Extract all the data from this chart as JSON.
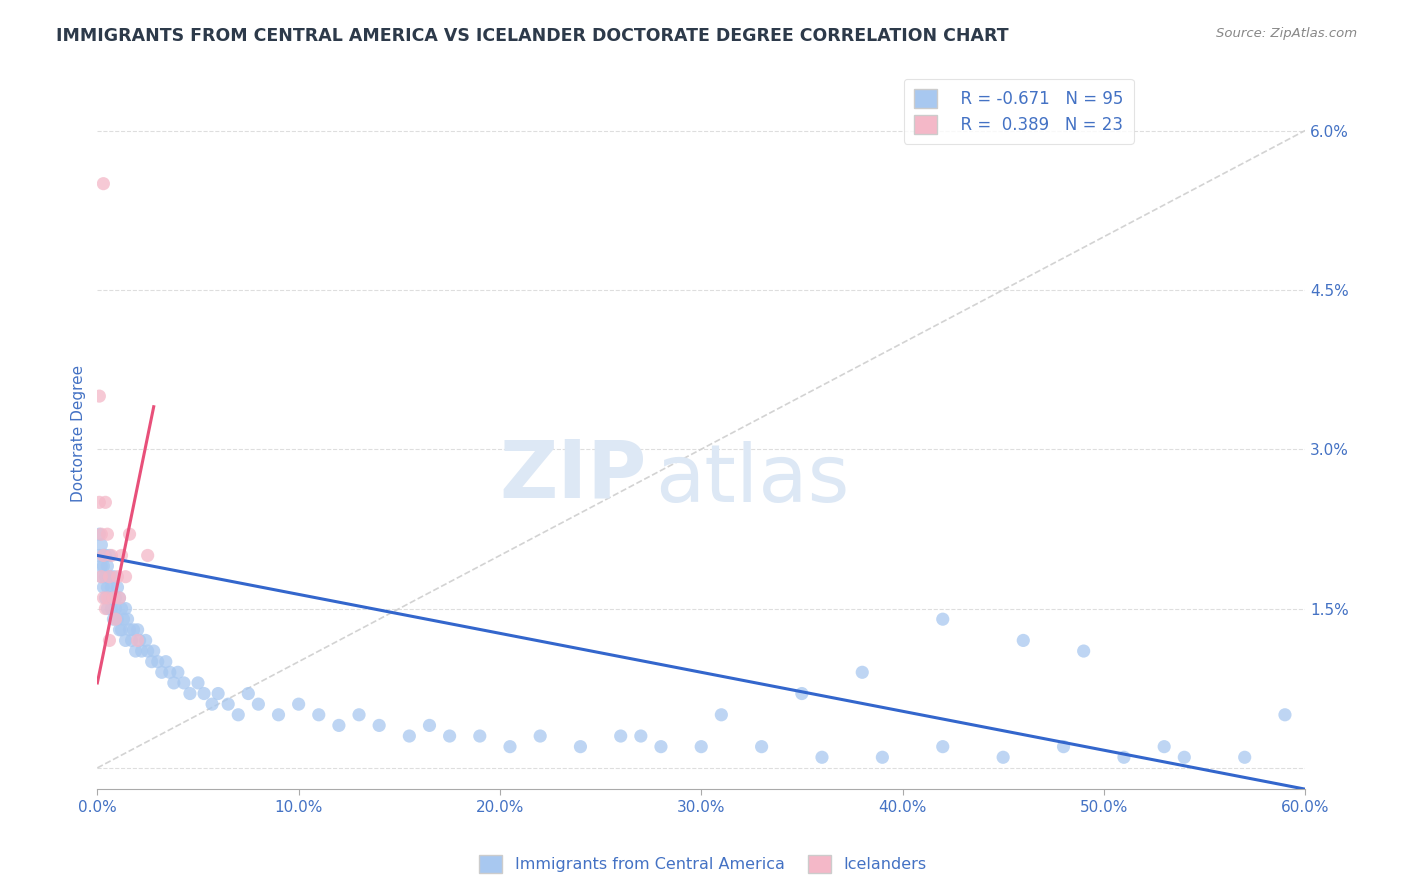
{
  "title": "IMMIGRANTS FROM CENTRAL AMERICA VS ICELANDER DOCTORATE DEGREE CORRELATION CHART",
  "source_text": "Source: ZipAtlas.com",
  "ylabel": "Doctorate Degree",
  "xlim": [
    0.0,
    0.6
  ],
  "ylim": [
    -0.002,
    0.065
  ],
  "xticks": [
    0.0,
    0.1,
    0.2,
    0.3,
    0.4,
    0.5,
    0.6
  ],
  "xticklabels": [
    "0.0%",
    "10.0%",
    "20.0%",
    "30.0%",
    "40.0%",
    "50.0%",
    "60.0%"
  ],
  "yticks_right": [
    0.0,
    0.015,
    0.03,
    0.045,
    0.06
  ],
  "yticklabels_right": [
    "",
    "1.5%",
    "3.0%",
    "4.5%",
    "6.0%"
  ],
  "grid_color": "#d0d0d0",
  "blue_color": "#a8c8f0",
  "pink_color": "#f4b8c8",
  "blue_line_color": "#3366cc",
  "pink_line_color": "#e8507a",
  "ref_line_color": "#c8c8c8",
  "legend_r1": "R = -0.671",
  "legend_n1": "N = 95",
  "legend_r2": "R =  0.389",
  "legend_n2": "N = 23",
  "title_color": "#2d3a4a",
  "source_color": "#888888",
  "axis_color": "#4472c4",
  "watermark_zip": "ZIP",
  "watermark_atlas": "atlas",
  "watermark_color": "#dde8f5",
  "blue_line_x0": 0.0,
  "blue_line_y0": 0.02,
  "blue_line_x1": 0.6,
  "blue_line_y1": -0.002,
  "pink_line_x0": 0.0,
  "pink_line_y0": 0.008,
  "pink_line_x1": 0.028,
  "pink_line_y1": 0.034,
  "ref_line_x0": 0.0,
  "ref_line_y0": 0.0,
  "ref_line_x1": 0.6,
  "ref_line_y1": 0.06,
  "blue_x": [
    0.001,
    0.001,
    0.002,
    0.002,
    0.002,
    0.003,
    0.003,
    0.003,
    0.004,
    0.004,
    0.004,
    0.005,
    0.005,
    0.005,
    0.006,
    0.006,
    0.006,
    0.007,
    0.007,
    0.008,
    0.008,
    0.008,
    0.009,
    0.009,
    0.01,
    0.01,
    0.011,
    0.011,
    0.012,
    0.012,
    0.013,
    0.014,
    0.014,
    0.015,
    0.016,
    0.017,
    0.018,
    0.019,
    0.02,
    0.021,
    0.022,
    0.024,
    0.025,
    0.027,
    0.028,
    0.03,
    0.032,
    0.034,
    0.036,
    0.038,
    0.04,
    0.043,
    0.046,
    0.05,
    0.053,
    0.057,
    0.06,
    0.065,
    0.07,
    0.075,
    0.08,
    0.09,
    0.1,
    0.11,
    0.12,
    0.13,
    0.14,
    0.155,
    0.165,
    0.175,
    0.19,
    0.205,
    0.22,
    0.24,
    0.26,
    0.28,
    0.3,
    0.33,
    0.36,
    0.39,
    0.42,
    0.45,
    0.48,
    0.51,
    0.54,
    0.57,
    0.42,
    0.46,
    0.49,
    0.53,
    0.38,
    0.35,
    0.31,
    0.27,
    0.59
  ],
  "blue_y": [
    0.022,
    0.02,
    0.019,
    0.021,
    0.018,
    0.02,
    0.017,
    0.019,
    0.018,
    0.016,
    0.02,
    0.017,
    0.019,
    0.015,
    0.018,
    0.016,
    0.02,
    0.017,
    0.015,
    0.016,
    0.018,
    0.014,
    0.016,
    0.015,
    0.017,
    0.014,
    0.016,
    0.013,
    0.015,
    0.013,
    0.014,
    0.015,
    0.012,
    0.014,
    0.013,
    0.012,
    0.013,
    0.011,
    0.013,
    0.012,
    0.011,
    0.012,
    0.011,
    0.01,
    0.011,
    0.01,
    0.009,
    0.01,
    0.009,
    0.008,
    0.009,
    0.008,
    0.007,
    0.008,
    0.007,
    0.006,
    0.007,
    0.006,
    0.005,
    0.007,
    0.006,
    0.005,
    0.006,
    0.005,
    0.004,
    0.005,
    0.004,
    0.003,
    0.004,
    0.003,
    0.003,
    0.002,
    0.003,
    0.002,
    0.003,
    0.002,
    0.002,
    0.002,
    0.001,
    0.001,
    0.002,
    0.001,
    0.002,
    0.001,
    0.001,
    0.001,
    0.014,
    0.012,
    0.011,
    0.002,
    0.009,
    0.007,
    0.005,
    0.003,
    0.005
  ],
  "pink_x": [
    0.001,
    0.001,
    0.002,
    0.002,
    0.003,
    0.003,
    0.003,
    0.004,
    0.004,
    0.005,
    0.005,
    0.006,
    0.006,
    0.007,
    0.008,
    0.009,
    0.01,
    0.011,
    0.012,
    0.014,
    0.016,
    0.02,
    0.025
  ],
  "pink_y": [
    0.035,
    0.025,
    0.022,
    0.018,
    0.055,
    0.02,
    0.016,
    0.025,
    0.015,
    0.022,
    0.016,
    0.018,
    0.012,
    0.02,
    0.016,
    0.014,
    0.018,
    0.016,
    0.02,
    0.018,
    0.022,
    0.012,
    0.02
  ]
}
